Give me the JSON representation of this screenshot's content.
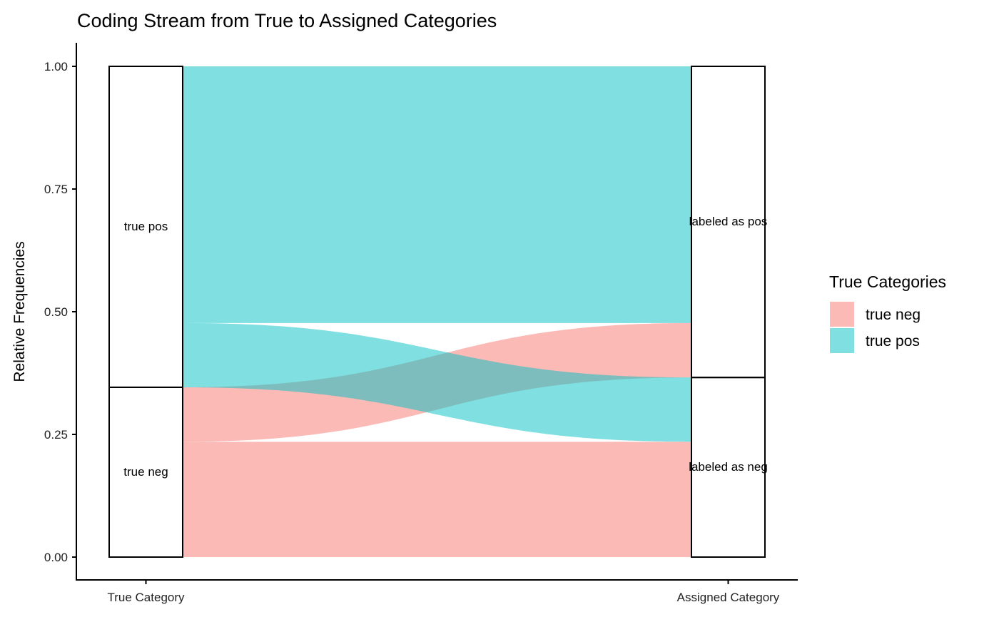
{
  "chart_data": {
    "type": "alluvial",
    "title": "Coding Stream from True to Assigned Categories",
    "xlabel": "",
    "ylabel": "Relative Frequencies",
    "ylim": [
      0,
      1
    ],
    "y_ticks": [
      "0.00",
      "0.25",
      "0.50",
      "0.75",
      "1.00"
    ],
    "y_tick_values": [
      0,
      0.25,
      0.5,
      0.75,
      1
    ],
    "axes": [
      "True Category",
      "Assigned Category"
    ],
    "grid": false,
    "legend": {
      "title": "True Categories",
      "placement": "right",
      "entries": [
        "true neg",
        "true pos"
      ]
    },
    "colors": {
      "true neg": "#F8766D",
      "true pos": "#00BFC4"
    },
    "strata": [
      {
        "axis": 0,
        "label": "true neg",
        "from": 0,
        "to": 0.346
      },
      {
        "axis": 0,
        "label": "true pos",
        "from": 0.346,
        "to": 1
      },
      {
        "axis": 1,
        "label": "labeled as neg",
        "from": 0,
        "to": 0.366
      },
      {
        "axis": 1,
        "label": "labeled as pos",
        "from": 0.366,
        "to": 1
      }
    ],
    "flows": [
      {
        "true": "true neg",
        "assigned": "labeled as neg",
        "value": 0.235,
        "left": [
          0,
          0.235
        ],
        "right": [
          0,
          0.235
        ]
      },
      {
        "true": "true neg",
        "assigned": "labeled as pos",
        "value": 0.111,
        "left": [
          0.235,
          0.346
        ],
        "right": [
          0.366,
          0.477
        ]
      },
      {
        "true": "true pos",
        "assigned": "labeled as neg",
        "value": 0.131,
        "left": [
          0.346,
          0.477
        ],
        "right": [
          0.235,
          0.366
        ]
      },
      {
        "true": "true pos",
        "assigned": "labeled as pos",
        "value": 0.523,
        "left": [
          0.477,
          1
        ],
        "right": [
          0.477,
          1
        ]
      }
    ]
  }
}
